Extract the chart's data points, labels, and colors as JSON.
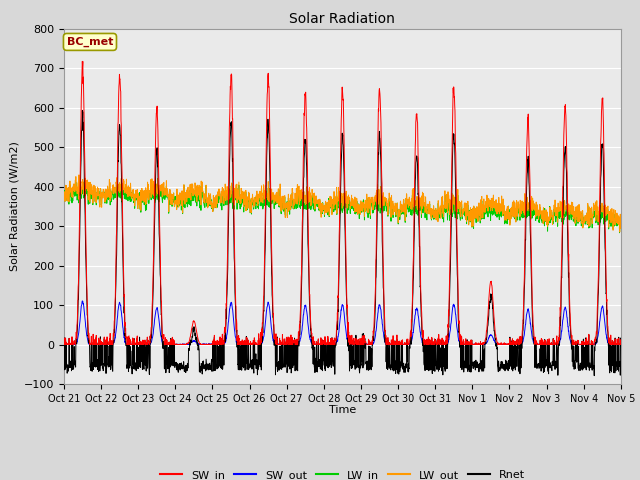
{
  "title": "Solar Radiation",
  "ylabel": "Solar Radiation (W/m2)",
  "xlabel": "Time",
  "ylim": [
    -100,
    800
  ],
  "yticks": [
    -100,
    0,
    100,
    200,
    300,
    400,
    500,
    600,
    700,
    800
  ],
  "annotation_text": "BC_met",
  "annotation_bg": "#ffffcc",
  "annotation_border": "#999900",
  "annotation_text_color": "#990000",
  "line_colors": {
    "SW_in": "#ff0000",
    "SW_out": "#0000ff",
    "LW_in": "#00cc00",
    "LW_out": "#ff9900",
    "Rnet": "#000000"
  },
  "xtick_labels": [
    "Oct 21",
    "Oct 22",
    "Oct 23",
    "Oct 24",
    "Oct 25",
    "Oct 26",
    "Oct 27",
    "Oct 28",
    "Oct 29",
    "Oct 30",
    "Oct 31",
    "Nov 1",
    "Nov 2",
    "Nov 3",
    "Nov 4",
    "Nov 5"
  ],
  "bg_color": "#d8d8d8",
  "plot_bg_color": "#eaeaea",
  "grid_color": "#ffffff",
  "n_days": 15,
  "points_per_day": 144
}
